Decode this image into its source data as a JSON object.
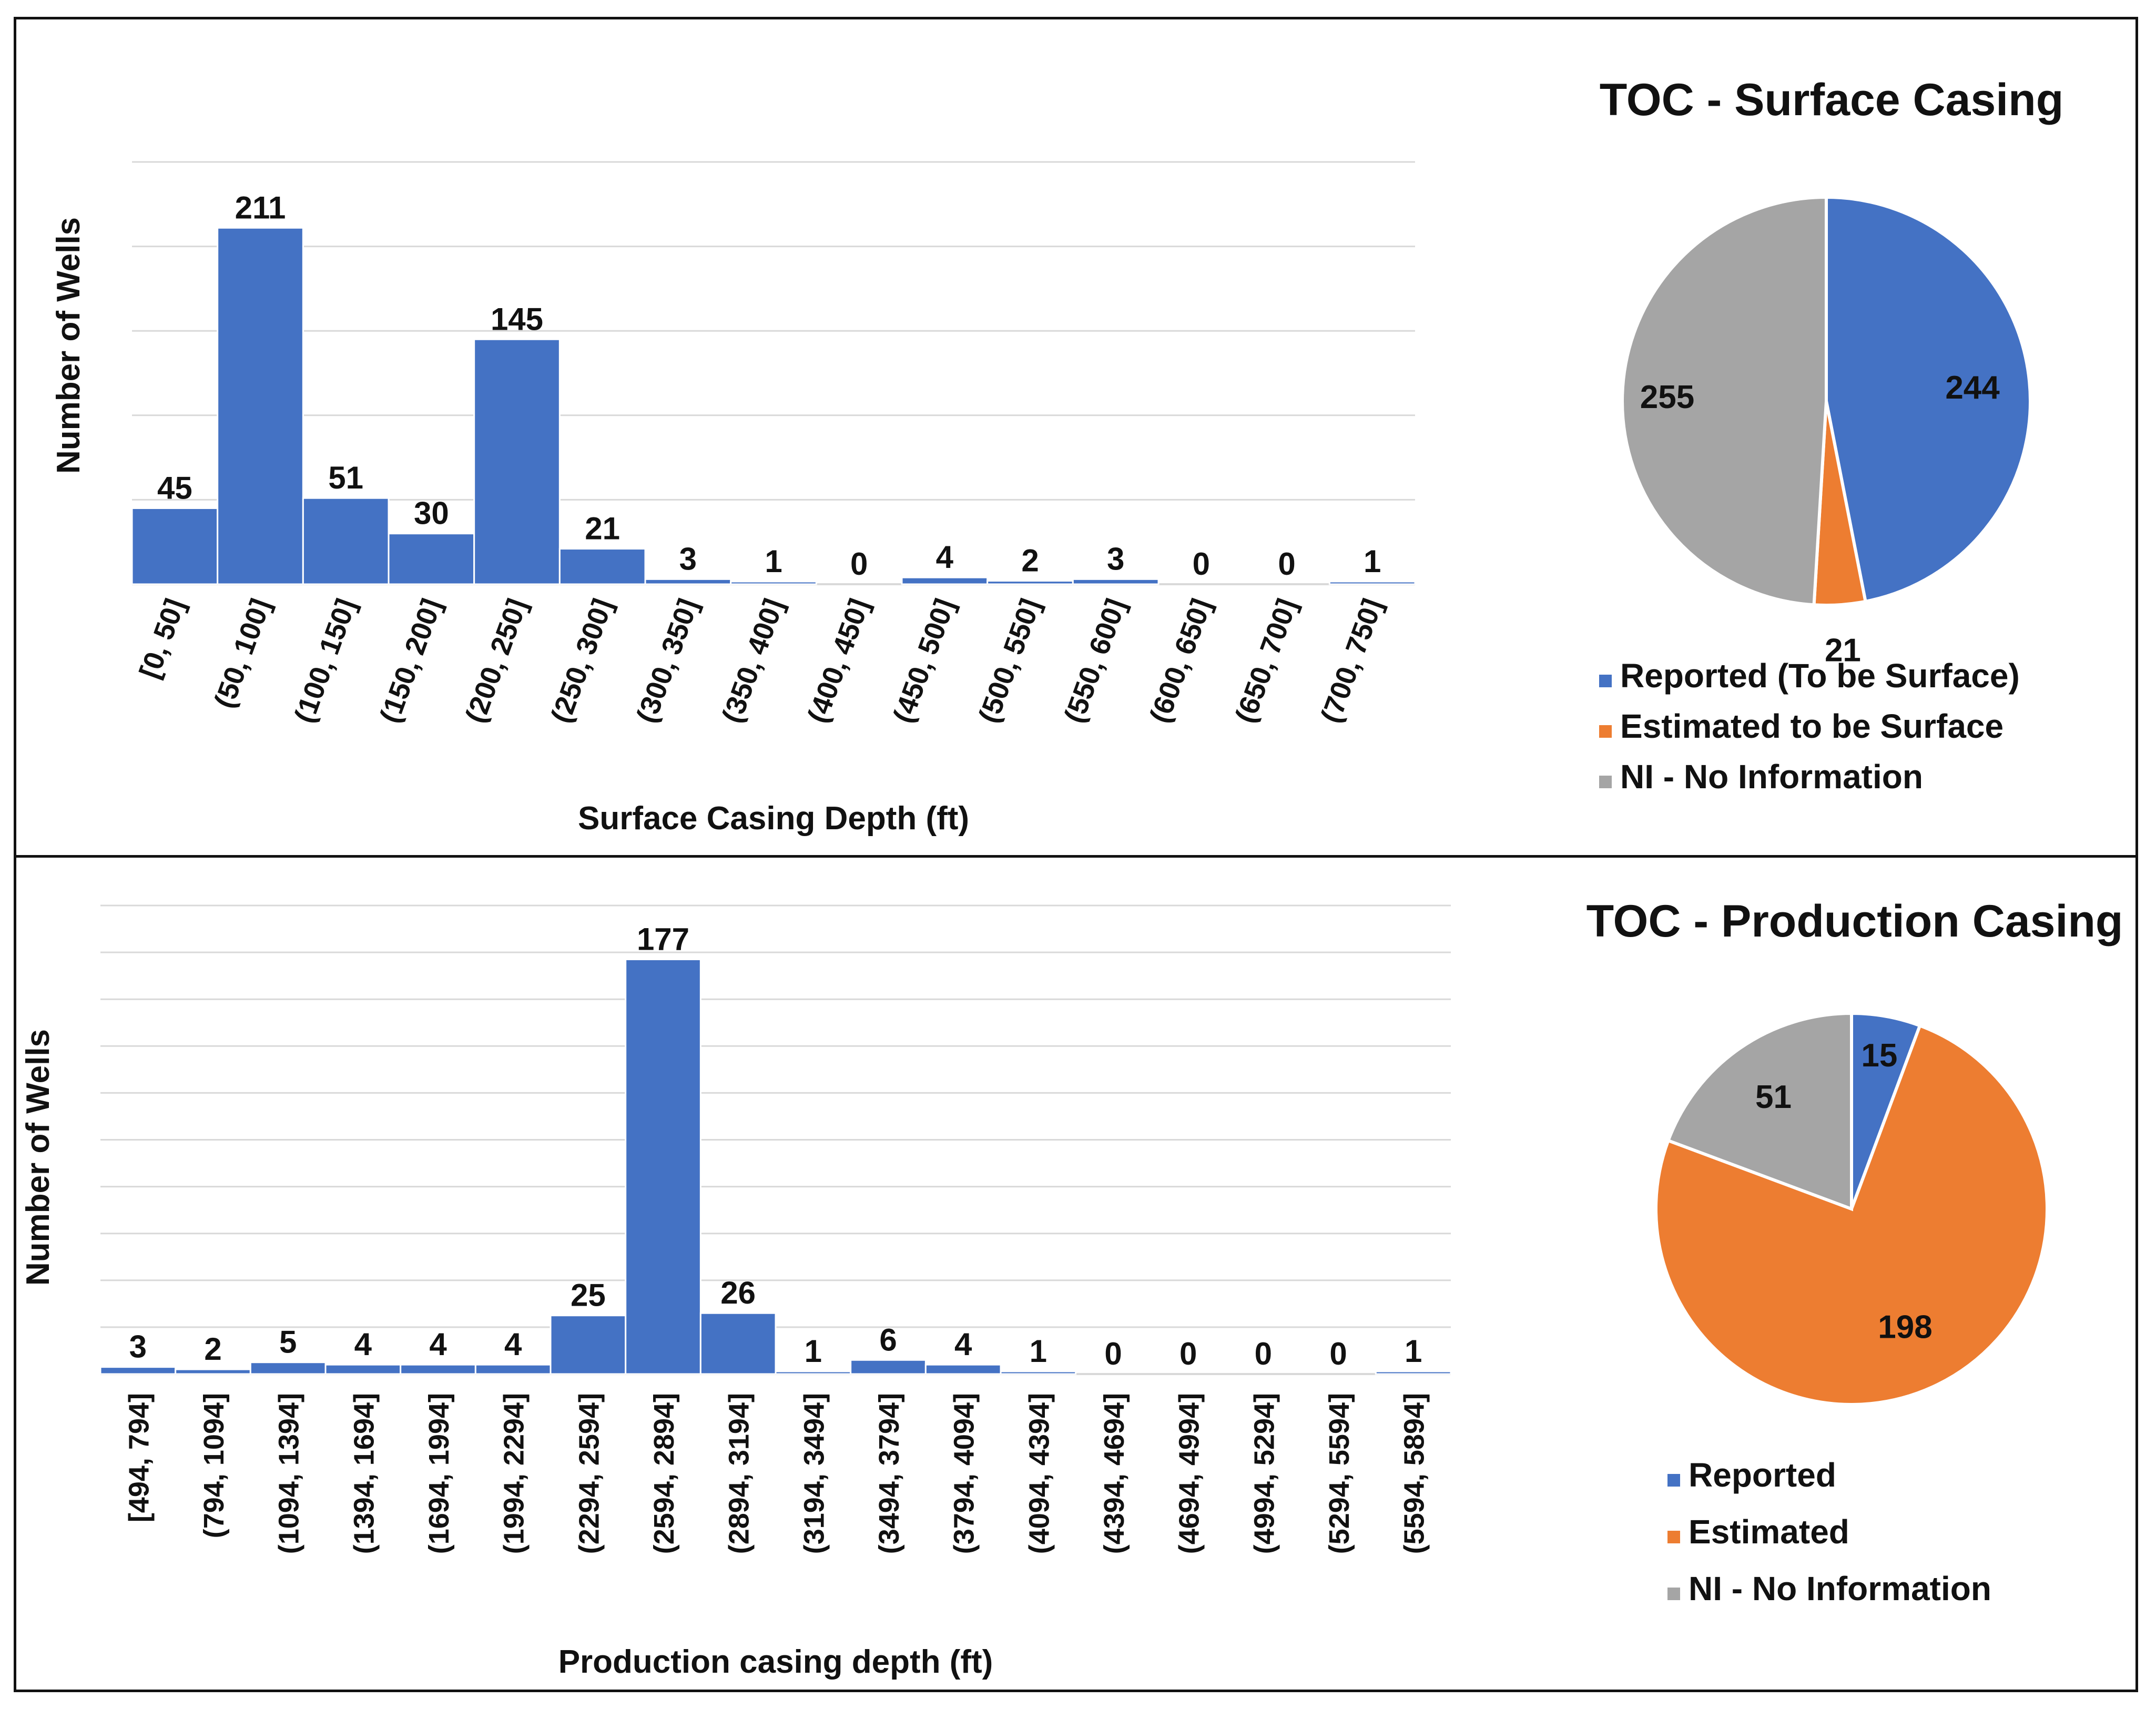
{
  "chart_data": [
    {
      "type": "bar",
      "xlabel": "Surface Casing Depth (ft)",
      "ylabel": "Number of Wells",
      "categories": [
        "[0, 50]",
        "(50, 100]",
        "(100, 150]",
        "(150, 200]",
        "(200, 250]",
        "(250, 300]",
        "(300, 350]",
        "(350, 400]",
        "(400, 450]",
        "(450, 500]",
        "(500, 550]",
        "(550, 600]",
        "(600, 650]",
        "(650, 700]",
        "(700, 750]"
      ],
      "values": [
        45,
        211,
        51,
        30,
        145,
        21,
        3,
        1,
        0,
        4,
        2,
        3,
        0,
        0,
        1
      ],
      "ylim": [
        0,
        250
      ],
      "grid": true
    },
    {
      "type": "pie",
      "title": "TOC - Surface Casing",
      "labels": [
        "Reported (To be Surface)",
        "Estimated to be Surface",
        "NI - No Information"
      ],
      "values": [
        244,
        21,
        255
      ],
      "colors": [
        "#4472C4",
        "#ED7D31",
        "#A5A5A5"
      ],
      "legend": "bottom"
    },
    {
      "type": "bar",
      "xlabel": "Production casing depth (ft)",
      "ylabel": "Number of Wells",
      "categories": [
        "[494, 794]",
        "(794, 1094]",
        "(1094, 1394]",
        "(1394, 1694]",
        "(1694, 1994]",
        "(1994, 2294]",
        "(2294, 2594]",
        "(2594, 2894]",
        "(2894, 3194]",
        "(3194, 3494]",
        "(3494, 3794]",
        "(3794, 4094]",
        "(4094, 4394]",
        "(4394, 4694]",
        "(4694, 4994]",
        "(4994, 5294]",
        "(5294, 5594]",
        "(5594, 5894]"
      ],
      "values": [
        3,
        2,
        5,
        4,
        4,
        4,
        25,
        177,
        26,
        1,
        6,
        4,
        1,
        0,
        0,
        0,
        0,
        1
      ],
      "ylim": [
        0,
        200
      ],
      "grid": true
    },
    {
      "type": "pie",
      "title": "TOC - Production Casing",
      "labels": [
        "Reported",
        "Estimated",
        "NI - No Information"
      ],
      "values": [
        15,
        198,
        51
      ],
      "colors": [
        "#4472C4",
        "#ED7D31",
        "#A5A5A5"
      ],
      "legend": "bottom"
    }
  ]
}
